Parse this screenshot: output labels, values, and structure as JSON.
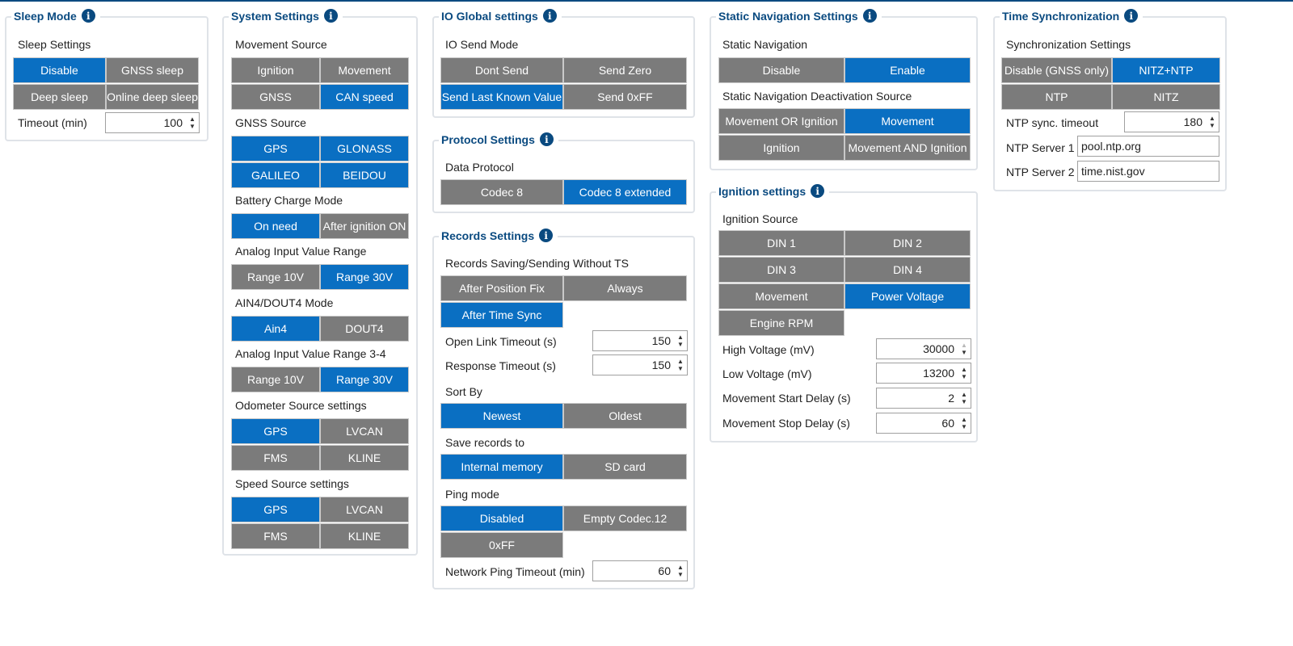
{
  "sleep": {
    "title": "Sleep Mode",
    "settings_label": "Sleep Settings",
    "buttons": [
      "Disable",
      "GNSS sleep",
      "Deep sleep",
      "Online deep sleep"
    ],
    "timeout_label": "Timeout (min)",
    "timeout_value": "100"
  },
  "system": {
    "title": "System Settings",
    "movement_source_label": "Movement Source",
    "movement_source": [
      "Ignition",
      "Movement",
      "GNSS",
      "CAN speed"
    ],
    "gnss_source_label": "GNSS Source",
    "gnss_source": [
      "GPS",
      "GLONASS",
      "GALILEO",
      "BEIDOU"
    ],
    "battery_label": "Battery Charge Mode",
    "battery": [
      "On need",
      "After ignition ON"
    ],
    "analog_label": "Analog Input Value Range",
    "analog": [
      "Range 10V",
      "Range 30V"
    ],
    "ain_label": "AIN4/DOUT4 Mode",
    "ain": [
      "Ain4",
      "DOUT4"
    ],
    "analog34_label": "Analog Input Value Range 3-4",
    "analog34": [
      "Range 10V",
      "Range 30V"
    ],
    "odometer_label": "Odometer Source settings",
    "odometer": [
      "GPS",
      "LVCAN",
      "FMS",
      "KLINE"
    ],
    "speed_label": "Speed Source settings",
    "speed": [
      "GPS",
      "LVCAN",
      "FMS",
      "KLINE"
    ]
  },
  "io": {
    "title": "IO Global settings",
    "send_mode_label": "IO Send Mode",
    "send_mode": [
      "Dont Send",
      "Send Zero",
      "Send Last Known Value",
      "Send 0xFF"
    ]
  },
  "protocol": {
    "title": "Protocol Settings",
    "data_protocol_label": "Data Protocol",
    "data_protocol": [
      "Codec 8",
      "Codec 8 extended"
    ]
  },
  "records": {
    "title": "Records Settings",
    "saving_label": "Records Saving/Sending Without TS",
    "saving": [
      "After Position Fix",
      "Always",
      "After Time Sync"
    ],
    "open_link_label": "Open Link Timeout (s)",
    "open_link_value": "150",
    "response_label": "Response Timeout (s)",
    "response_value": "150",
    "sort_label": "Sort By",
    "sort": [
      "Newest",
      "Oldest"
    ],
    "save_to_label": "Save records to",
    "save_to": [
      "Internal memory",
      "SD card"
    ],
    "ping_label": "Ping mode",
    "ping": [
      "Disabled",
      "Empty Codec.12",
      "0xFF"
    ],
    "net_ping_label": "Network Ping Timeout (min)",
    "net_ping_value": "60"
  },
  "static_nav": {
    "title": "Static Navigation Settings",
    "static_label": "Static Navigation",
    "static": [
      "Disable",
      "Enable"
    ],
    "deact_label": "Static Navigation Deactivation Source",
    "deact": [
      "Movement OR Ignition",
      "Movement",
      "Ignition",
      "Movement AND Ignition"
    ]
  },
  "ignition": {
    "title": "Ignition settings",
    "source_label": "Ignition Source",
    "source": [
      "DIN 1",
      "DIN 2",
      "DIN 3",
      "DIN 4",
      "Movement",
      "Power Voltage",
      "Engine RPM"
    ],
    "high_label": "High Voltage (mV)",
    "high_value": "30000",
    "low_label": "Low Voltage (mV)",
    "low_value": "13200",
    "start_label": "Movement Start Delay (s)",
    "start_value": "2",
    "stop_label": "Movement Stop Delay (s)",
    "stop_value": "60"
  },
  "time_sync": {
    "title": "Time Synchronization",
    "settings_label": "Synchronization Settings",
    "buttons": [
      "Disable (GNSS only)",
      "NITZ+NTP",
      "NTP",
      "NITZ"
    ],
    "ntp_timeout_label": "NTP sync. timeout",
    "ntp_timeout_value": "180",
    "server1_label": "NTP Server 1",
    "server1_value": "pool.ntp.org",
    "server2_label": "NTP Server 2",
    "server2_value": "time.nist.gov"
  },
  "icons": {
    "info": "i",
    "spin_up": "▲",
    "spin_down": "▼"
  },
  "colors": {
    "selected": "#0a6fc2",
    "unselected": "#7b7b7b",
    "title": "#0a4a80"
  }
}
